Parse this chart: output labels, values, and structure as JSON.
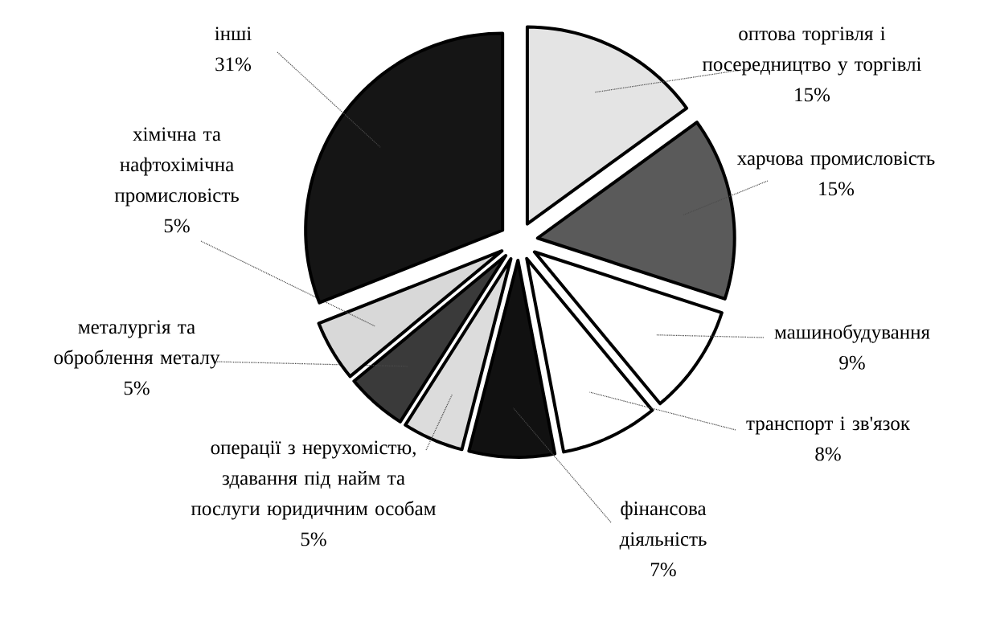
{
  "chart_data": {
    "type": "pie",
    "categories": [
      "оптова торгівля і посередництво у торгівлі",
      "харчова промисловість",
      "машинобудування",
      "транспорт і зв'язок",
      "фінансова діяльність",
      "операції з нерухомістю, здавання під найм та послуги юридичним особам",
      "металургія та оброблення металу",
      "хімічна та нафтохімічна промисловість",
      "інші"
    ],
    "values": [
      15,
      15,
      9,
      8,
      7,
      5,
      5,
      5,
      31
    ],
    "value_labels": [
      "15%",
      "15%",
      "9%",
      "8%",
      "7%",
      "5%",
      "5%",
      "5%",
      "31%"
    ],
    "colors": [
      "#e4e4e4",
      "#5a5a5a",
      "#ffffff",
      "#ffffff",
      "#111111",
      "#dcdcdc",
      "#3a3a3a",
      "#d8d8d8",
      "#151515"
    ]
  }
}
